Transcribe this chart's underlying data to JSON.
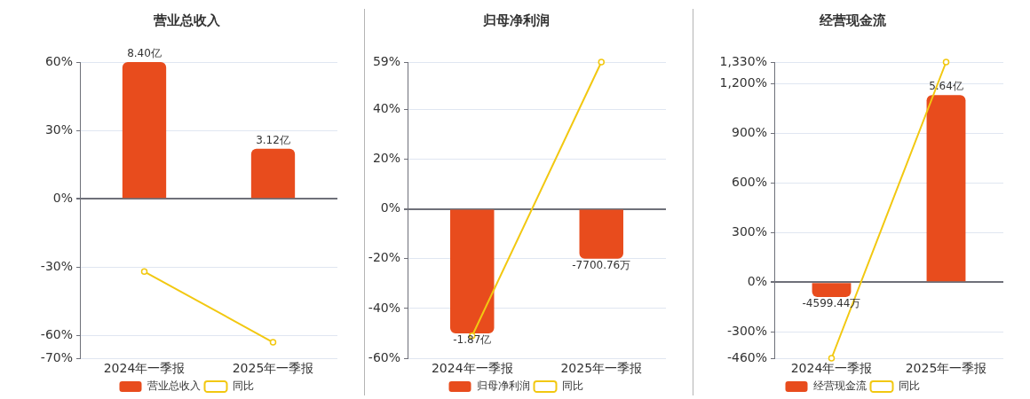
{
  "chart_data": [
    {
      "type": "bar",
      "title": "营业总收入",
      "categories": [
        "2024年一季报",
        "2025年一季报"
      ],
      "series": [
        {
          "name": "营业总收入",
          "color": "#e84c1d",
          "values": [
            60,
            22
          ]
        },
        {
          "name": "同比",
          "type": "line",
          "color": "#f2c811",
          "values": [
            -32,
            -63
          ]
        }
      ],
      "ylim": [
        -70,
        60
      ],
      "yticks": [
        {
          "value": -70,
          "label": "-70%"
        },
        {
          "value": -60,
          "label": "-60%"
        },
        {
          "value": -30,
          "label": "-30%"
        },
        {
          "value": 0,
          "label": "0%"
        },
        {
          "value": 30,
          "label": "30%"
        },
        {
          "value": 60,
          "label": "60%"
        }
      ],
      "grid": "y",
      "legend": "bottom",
      "marker": "circle",
      "annotations": [
        {
          "text": "8.40亿",
          "x": "2024年一季报",
          "y": 60
        },
        {
          "text": "3.12亿",
          "x": "2025年一季报",
          "y": 22
        }
      ]
    },
    {
      "type": "bar",
      "title": "归母净利润",
      "categories": [
        "2024年一季报",
        "2025年一季报"
      ],
      "series": [
        {
          "name": "归母净利润",
          "color": "#e84c1d",
          "values": [
            -50,
            -20
          ]
        },
        {
          "name": "同比",
          "type": "line",
          "color": "#f2c811",
          "values": [
            -51,
            59
          ]
        }
      ],
      "ylim": [
        -60,
        59
      ],
      "yticks": [
        {
          "value": -60,
          "label": "-60%"
        },
        {
          "value": -40,
          "label": "-40%"
        },
        {
          "value": -20,
          "label": "-20%"
        },
        {
          "value": 0,
          "label": "0%"
        },
        {
          "value": 20,
          "label": "20%"
        },
        {
          "value": 40,
          "label": "40%"
        },
        {
          "value": 59,
          "label": "59%"
        }
      ],
      "grid": "y",
      "legend": "bottom",
      "marker": "circle",
      "annotations": [
        {
          "text": "-1.87亿",
          "x": "2024年一季报",
          "y": -50
        },
        {
          "text": "-7700.76万",
          "x": "2025年一季报",
          "y": -20
        }
      ]
    },
    {
      "type": "bar",
      "title": "经营现金流",
      "categories": [
        "2024年一季报",
        "2025年一季报"
      ],
      "series": [
        {
          "name": "经营现金流",
          "color": "#e84c1d",
          "values": [
            -90,
            1130
          ]
        },
        {
          "name": "同比",
          "type": "line",
          "color": "#f2c811",
          "values": [
            -460,
            1330
          ]
        }
      ],
      "ylim": [
        -460,
        1330
      ],
      "yticks": [
        {
          "value": -460,
          "label": "-460%"
        },
        {
          "value": -300,
          "label": "-300%"
        },
        {
          "value": 0,
          "label": "0%"
        },
        {
          "value": 300,
          "label": "300%"
        },
        {
          "value": 600,
          "label": "600%"
        },
        {
          "value": 900,
          "label": "900%"
        },
        {
          "value": 1200,
          "label": "1,200%"
        },
        {
          "value": 1330,
          "label": "1,330%"
        }
      ],
      "grid": "y",
      "legend": "bottom",
      "marker": "circle",
      "annotations": [
        {
          "text": "-4599.44万",
          "x": "2024年一季报",
          "y": -90
        },
        {
          "text": "5.64亿",
          "x": "2025年一季报",
          "y": 1130
        }
      ]
    }
  ]
}
